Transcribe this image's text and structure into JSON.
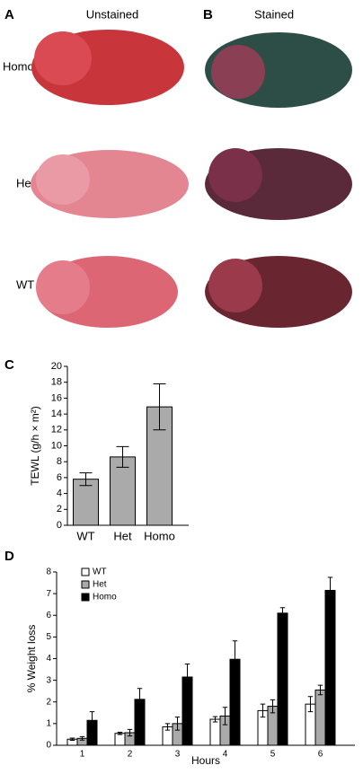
{
  "panels": {
    "a": {
      "label": "A",
      "title": "Unstained"
    },
    "b": {
      "label": "B",
      "title": "Stained"
    },
    "rows": [
      "Homo",
      "Het",
      "WT"
    ]
  },
  "chart_data": [
    {
      "type": "bar",
      "panel_label": "C",
      "ylabel": "TEWL (g/h × m²)",
      "categories": [
        "WT",
        "Het",
        "Homo"
      ],
      "values": [
        5.8,
        8.6,
        14.9
      ],
      "errors": [
        0.8,
        1.3,
        2.9
      ],
      "color": "#aaaaaa",
      "ylim": [
        0,
        20
      ],
      "yticks": [
        0,
        2,
        4,
        6,
        8,
        10,
        12,
        14,
        16,
        18,
        20
      ]
    },
    {
      "type": "bar",
      "panel_label": "D",
      "ylabel": "% Weight loss",
      "xlabel": "Hours",
      "legend": "top-left",
      "categories": [
        "1",
        "2",
        "3",
        "4",
        "5",
        "6"
      ],
      "series": [
        {
          "name": "WT",
          "color": "#ffffff",
          "values": [
            0.28,
            0.55,
            0.85,
            1.2,
            1.6,
            1.9
          ],
          "errors": [
            0.05,
            0.05,
            0.15,
            0.12,
            0.3,
            0.35
          ]
        },
        {
          "name": "Het",
          "color": "#aaaaaa",
          "values": [
            0.32,
            0.58,
            1.0,
            1.35,
            1.8,
            2.55
          ],
          "errors": [
            0.08,
            0.15,
            0.3,
            0.4,
            0.3,
            0.22
          ]
        },
        {
          "name": "Homo",
          "color": "#000000",
          "values": [
            1.15,
            2.12,
            3.15,
            3.97,
            6.1,
            7.15
          ],
          "errors": [
            0.4,
            0.5,
            0.6,
            0.85,
            0.25,
            0.6
          ]
        }
      ],
      "ylim": [
        0,
        8
      ],
      "yticks": [
        0,
        1,
        2,
        3,
        4,
        5,
        6,
        7,
        8
      ]
    }
  ]
}
